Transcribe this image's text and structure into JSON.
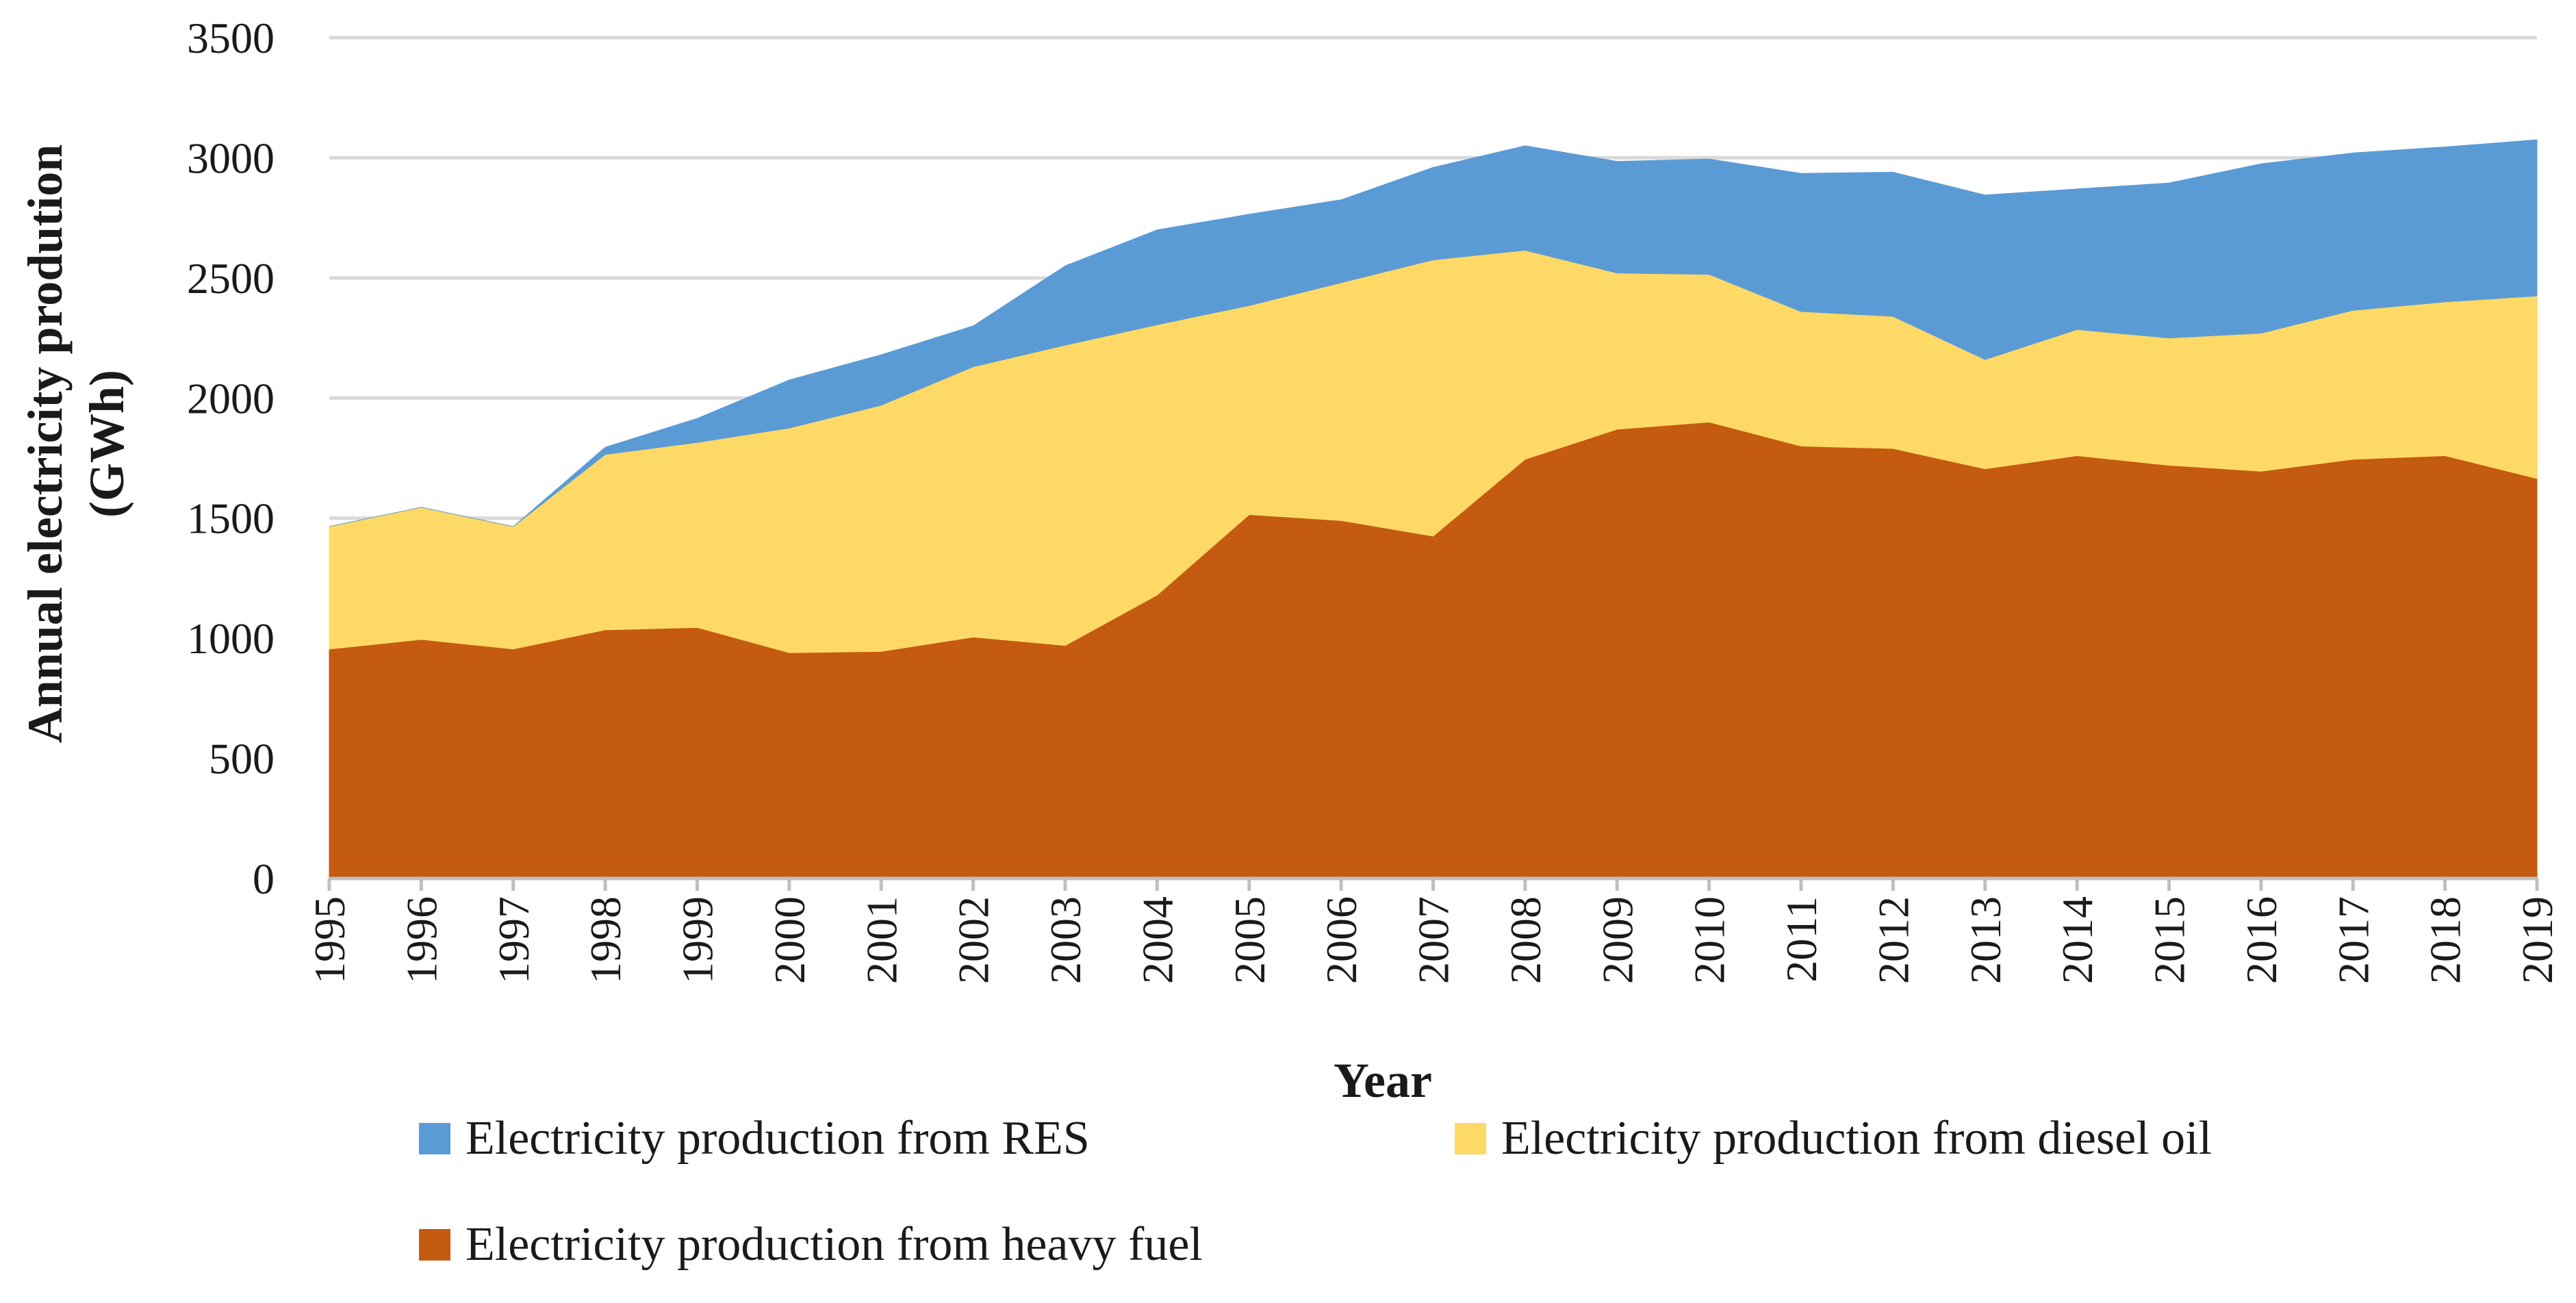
{
  "chart_data": {
    "type": "area",
    "stacked": true,
    "title": "",
    "xlabel": "Year",
    "ylabel_line1": "Annual electricity prodution",
    "ylabel_line2": "(GWh)",
    "ylim": [
      0,
      3500
    ],
    "yticks": [
      0,
      500,
      1000,
      1500,
      2000,
      2500,
      3000,
      3500
    ],
    "grid": true,
    "legend_position": "bottom",
    "categories": [
      "1995",
      "1996",
      "1997",
      "1998",
      "1999",
      "2000",
      "2001",
      "2002",
      "2003",
      "2004",
      "2005",
      "2006",
      "2007",
      "2008",
      "2009",
      "2010",
      "2011",
      "2012",
      "2013",
      "2014",
      "2015",
      "2016",
      "2017",
      "2018",
      "2019"
    ],
    "series": [
      {
        "name": "Electricity production from heavy fuel",
        "key": "heavy",
        "color": "#C55A11",
        "values": [
          955,
          995,
          955,
          1035,
          1045,
          940,
          945,
          1005,
          970,
          1180,
          1515,
          1490,
          1425,
          1745,
          1870,
          1900,
          1800,
          1790,
          1705,
          1760,
          1720,
          1695,
          1745,
          1760,
          1665
        ]
      },
      {
        "name": "Electricity production from diesel oil",
        "key": "diesel",
        "color": "#FFD966",
        "values": [
          510,
          550,
          510,
          730,
          770,
          935,
          1025,
          1125,
          1250,
          1125,
          870,
          990,
          1150,
          870,
          650,
          615,
          560,
          550,
          455,
          525,
          530,
          575,
          620,
          640,
          760
        ]
      },
      {
        "name": "Electricity production from RES",
        "key": "res",
        "color": "#5B9BD5",
        "values": [
          0,
          0,
          0,
          30,
          100,
          200,
          210,
          170,
          330,
          395,
          380,
          345,
          385,
          435,
          465,
          480,
          575,
          600,
          685,
          585,
          645,
          705,
          655,
          645,
          650
        ]
      }
    ],
    "legend": [
      {
        "label": "Electricity production from RES",
        "color": "#5B9BD5"
      },
      {
        "label": "Electricity production from diesel oil",
        "color": "#FFD966"
      },
      {
        "label": "Electricity production from heavy fuel",
        "color": "#C55A11"
      }
    ]
  }
}
